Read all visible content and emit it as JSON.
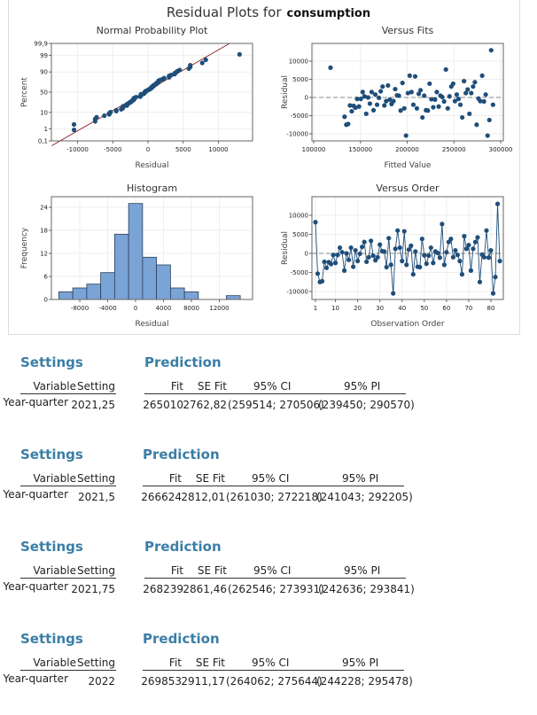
{
  "title": {
    "prefix": "Residual Plots for",
    "response": "consumption"
  },
  "colors": {
    "point": "#1f4e79",
    "bar": "#7aa3d6",
    "bar_edge": "#2b3f5c",
    "heading": "#3a7ea6",
    "fit_line": "#8b1a1a"
  },
  "chart_data": [
    {
      "type": "scatter",
      "title": "Normal Probability Plot",
      "xlabel": "Residual",
      "ylabel": "Percent",
      "xticks": [
        -10000,
        -5000,
        0,
        5000,
        10000
      ],
      "yticks": [
        "0,1",
        "1",
        "10",
        "50",
        "90",
        "99",
        "99,9"
      ],
      "ytick_values": [
        0.1,
        1,
        10,
        50,
        90,
        99,
        99.9
      ],
      "scale": "normal probability",
      "grid": true,
      "note": "points are the residuals of the Versus Order series, plotted against their normal percentiles, with fitted reference line"
    },
    {
      "type": "scatter",
      "title": "Versus Fits",
      "xlabel": "Fitted Value",
      "ylabel": "Residual",
      "xlim": [
        95000,
        305000
      ],
      "ylim": [
        -12000,
        15000
      ],
      "xticks": [
        100000,
        150000,
        200000,
        250000,
        300000
      ],
      "yticks": [
        -10000,
        -5000,
        0,
        5000,
        10000
      ],
      "reference_line": 0,
      "grid": true,
      "fits": [
        118000,
        133000,
        134900,
        136900,
        138800,
        140700,
        142700,
        144600,
        146500,
        148500,
        150400,
        152400,
        154300,
        156200,
        158200,
        160100,
        162000,
        164000,
        165900,
        167800,
        169800,
        171700,
        173700,
        175600,
        177500,
        179500,
        181400,
        183300,
        185300,
        187200,
        189100,
        191100,
        193000,
        195000,
        196900,
        198800,
        200800,
        202700,
        204600,
        206600,
        208500,
        210400,
        212400,
        214300,
        216300,
        218200,
        220100,
        222100,
        224000,
        225900,
        227900,
        229800,
        231700,
        233700,
        235600,
        237600,
        239500,
        241400,
        243400,
        245300,
        247200,
        249200,
        251100,
        253000,
        255000,
        256900,
        258900,
        260800,
        262700,
        264700,
        266600,
        268500,
        270500,
        272400,
        274300,
        276300,
        278200,
        280200,
        282100,
        284000,
        286000,
        287900,
        289800,
        291800
      ]
    },
    {
      "type": "bar",
      "title": "Histogram",
      "xlabel": "Residual",
      "ylabel": "Frequency",
      "bin_centers": [
        -10000,
        -8000,
        -6000,
        -4000,
        -2000,
        0,
        2000,
        4000,
        6000,
        8000,
        10000,
        12000,
        14000
      ],
      "values": [
        2,
        3,
        4,
        7,
        17,
        25,
        11,
        9,
        3,
        2,
        0,
        0,
        1
      ],
      "xticks": [
        -8000,
        -4000,
        0,
        4000,
        8000,
        12000
      ],
      "yticks": [
        0,
        6,
        12,
        18,
        24
      ],
      "grid": true
    },
    {
      "type": "line",
      "title": "Versus Order",
      "xlabel": "Observation Order",
      "ylabel": "Residual",
      "xticks": [
        1,
        10,
        20,
        30,
        40,
        50,
        60,
        70,
        80
      ],
      "yticks": [
        -10000,
        -5000,
        0,
        5000,
        10000
      ],
      "ylim": [
        -12000,
        15000
      ],
      "reference_line": 0,
      "grid": true,
      "residuals": [
        8200,
        -5300,
        -7500,
        -7300,
        -2200,
        -3800,
        -2300,
        -2800,
        -400,
        -2500,
        -400,
        1500,
        300,
        -4500,
        0,
        -1700,
        1500,
        -3500,
        800,
        -2000,
        -100,
        1700,
        3000,
        -2200,
        -1000,
        3300,
        -600,
        -1800,
        -1000,
        2300,
        600,
        500,
        -3600,
        4000,
        -3000,
        -10500,
        1200,
        6000,
        1500,
        -2000,
        5800,
        -3000,
        1000,
        2000,
        -5500,
        500,
        -3500,
        -3600,
        3800,
        -500,
        -2700,
        -600,
        1500,
        -2500,
        500,
        100,
        -1100,
        7700,
        -3000,
        300,
        3000,
        3800,
        -1000,
        800,
        -400,
        -2000,
        -5500,
        4500,
        1200,
        2200,
        -4500,
        1200,
        3000,
        4200,
        -7500,
        -300,
        -1000,
        6000,
        -1100,
        800,
        -10500,
        -6200,
        13000,
        -2000
      ]
    }
  ],
  "predictions": [
    {
      "settings_title": "Settings",
      "prediction_title": "Prediction",
      "headers": {
        "variable": "Variable",
        "setting": "Setting",
        "fit": "Fit",
        "se_fit": "SE Fit",
        "ci": "95% CI",
        "pi": "95% PI"
      },
      "variable": "Year-quarter",
      "setting": "2021,25",
      "fit": "265010",
      "se_fit": "2762,82",
      "ci": "(259514; 270506)",
      "pi": "(239450; 290570)"
    },
    {
      "settings_title": "Settings",
      "prediction_title": "Prediction",
      "headers": {
        "variable": "Variable",
        "setting": "Setting",
        "fit": "Fit",
        "se_fit": "SE Fit",
        "ci": "95% CI",
        "pi": "95% PI"
      },
      "variable": "Year-quarter",
      "setting": "2021,5",
      "fit": "266624",
      "se_fit": "2812,01",
      "ci": "(261030; 272218)",
      "pi": "(241043; 292205)"
    },
    {
      "settings_title": "Settings",
      "prediction_title": "Prediction",
      "headers": {
        "variable": "Variable",
        "setting": "Setting",
        "fit": "Fit",
        "se_fit": "SE Fit",
        "ci": "95% CI",
        "pi": "95% PI"
      },
      "variable": "Year-quarter",
      "setting": "2021,75",
      "fit": "268239",
      "se_fit": "2861,46",
      "ci": "(262546; 273931)",
      "pi": "(242636; 293841)"
    },
    {
      "settings_title": "Settings",
      "prediction_title": "Prediction",
      "headers": {
        "variable": "Variable",
        "setting": "Setting",
        "fit": "Fit",
        "se_fit": "SE Fit",
        "ci": "95% CI",
        "pi": "95% PI"
      },
      "variable": "Year-quarter",
      "setting": "2022",
      "fit": "269853",
      "se_fit": "2911,17",
      "ci": "(264062; 275644)",
      "pi": "(244228; 295478)"
    }
  ]
}
